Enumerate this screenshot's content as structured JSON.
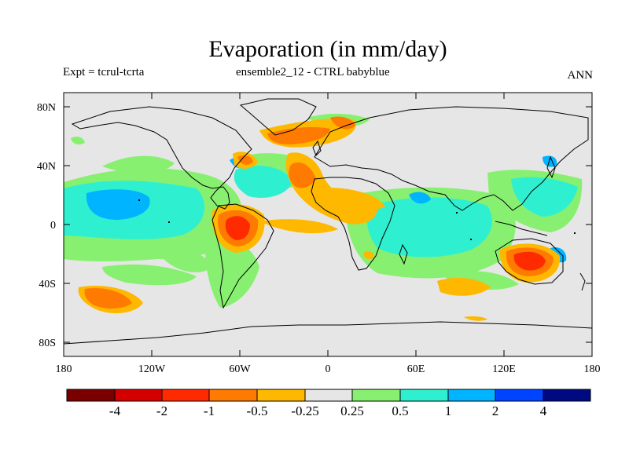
{
  "title": "Evaporation (in mm/day)",
  "left_subtitle": "Expt = tcrul-tcrta",
  "center_subtitle": "ensemble2_12 - CTRL babyblue",
  "right_subtitle": "ANN",
  "lat_ticks": [
    "80N",
    "40N",
    "0",
    "40S",
    "80S"
  ],
  "lon_ticks": [
    "180",
    "120W",
    "60W",
    "0",
    "60E",
    "120E",
    "180"
  ],
  "colorbar": {
    "labels": [
      "-4",
      "-2",
      "-1",
      "-0.5",
      "-0.25",
      "0.25",
      "0.5",
      "1",
      "2",
      "4"
    ],
    "colors": [
      "#7a0000",
      "#d40000",
      "#ff2a00",
      "#ff7a00",
      "#ffb800",
      "#e6e6e6",
      "#88f070",
      "#2ef0d0",
      "#00b4ff",
      "#0044ff",
      "#000a80"
    ]
  },
  "map": {
    "background_color": "#e6e6e6"
  }
}
